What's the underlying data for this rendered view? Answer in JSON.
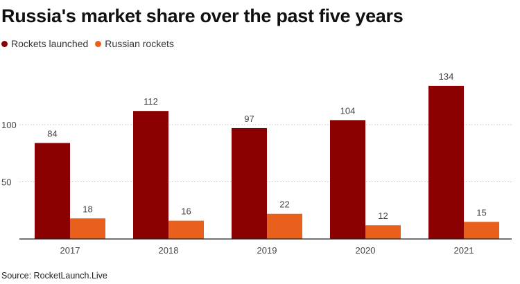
{
  "chart_data": {
    "type": "bar",
    "title": "Russia's market share over the past five years",
    "categories": [
      "2017",
      "2018",
      "2019",
      "2020",
      "2021"
    ],
    "series": [
      {
        "name": "Rockets launched",
        "color": "#8b0000",
        "values": [
          84,
          112,
          97,
          104,
          134
        ]
      },
      {
        "name": "Russian rockets",
        "color": "#e8601c",
        "values": [
          18,
          16,
          22,
          12,
          15
        ]
      }
    ],
    "y_ticks": [
      "50",
      "100"
    ],
    "ylim": [
      0,
      150
    ],
    "xlabel": "",
    "ylabel": "",
    "grid": "horizontal",
    "legend_position": "top-left",
    "source": "Source: RocketLaunch.Live"
  }
}
